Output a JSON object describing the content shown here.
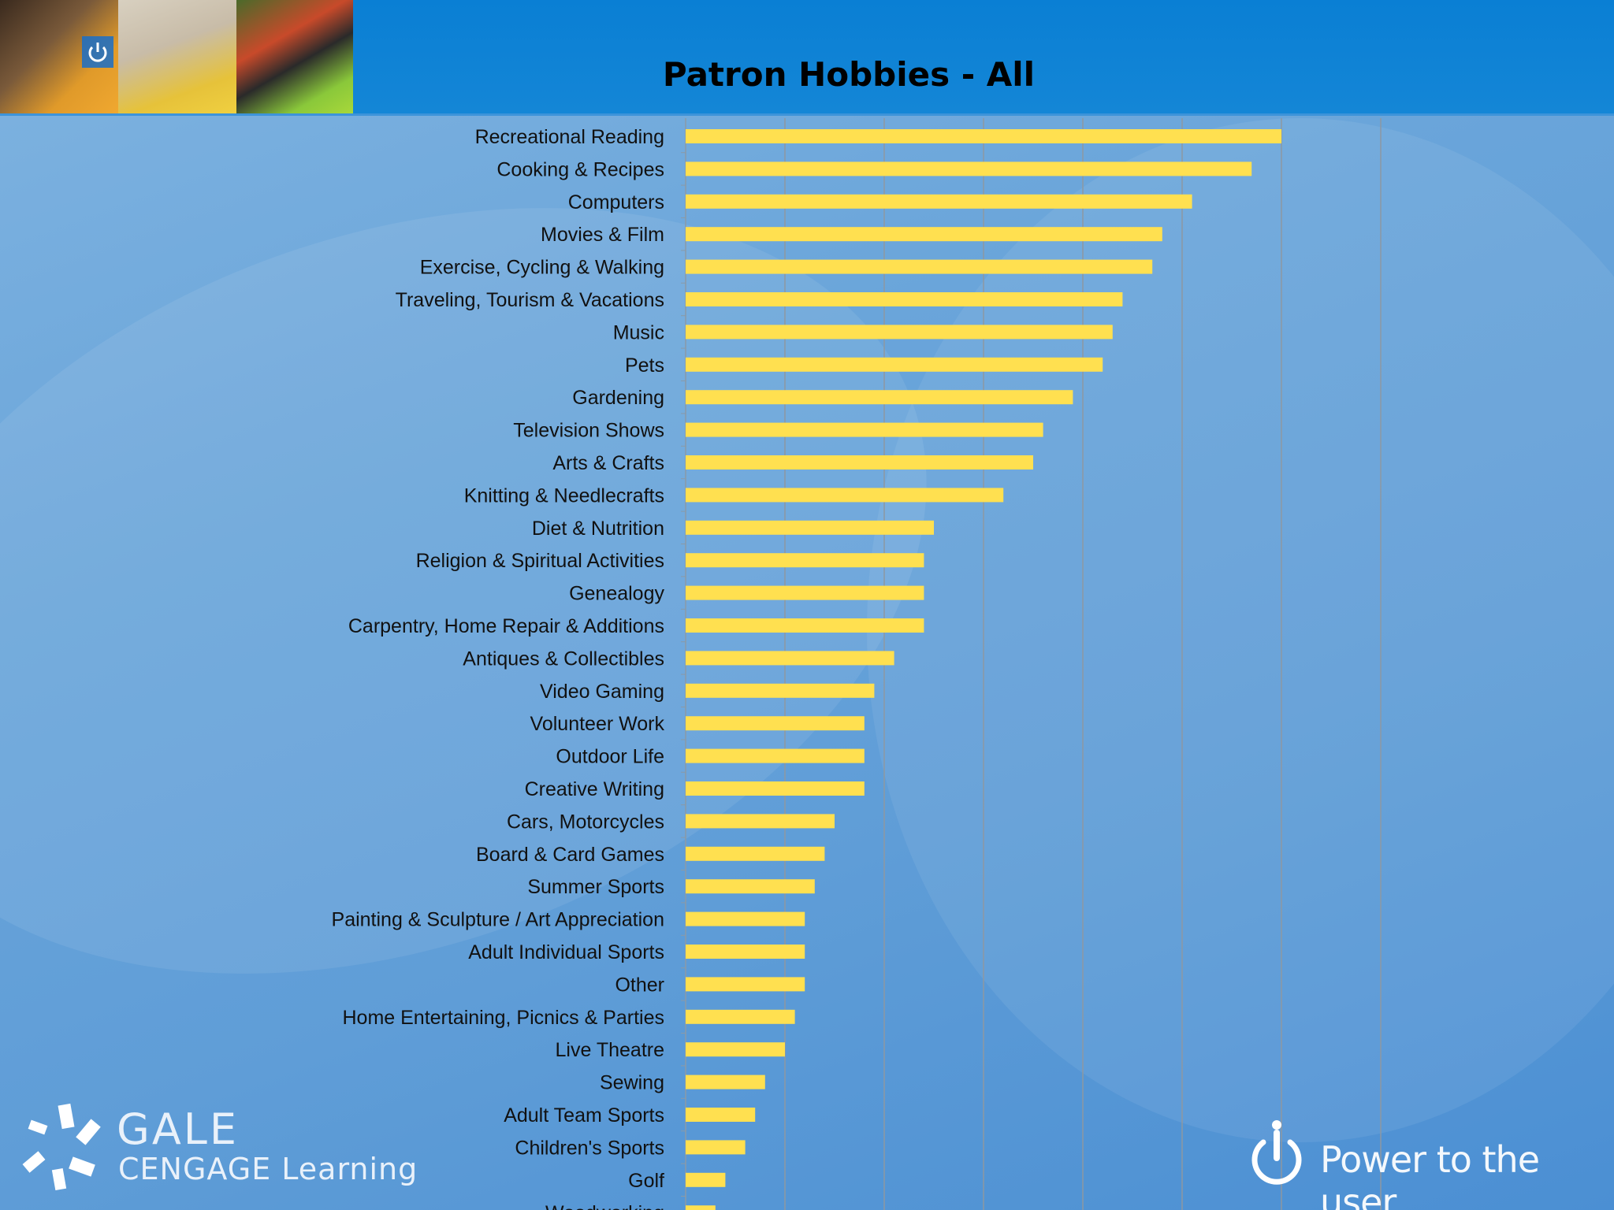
{
  "header": {
    "title": "Patron Hobbies - All"
  },
  "chart_data": {
    "type": "bar",
    "orientation": "horizontal",
    "title": "Patron Hobbies - All",
    "xlabel": "",
    "ylabel": "",
    "xlim": [
      0,
      7
    ],
    "grid": true,
    "bar_color": "#ffe050",
    "categories": [
      "Recreational Reading",
      "Cooking & Recipes",
      "Computers",
      "Movies & Film",
      "Exercise, Cycling & Walking",
      "Traveling, Tourism & Vacations",
      "Music",
      "Pets",
      "Gardening",
      "Television Shows",
      "Arts & Crafts",
      "Knitting & Needlecrafts",
      "Diet & Nutrition",
      "Religion & Spiritual Activities",
      "Genealogy",
      "Carpentry, Home Repair & Additions",
      "Antiques & Collectibles",
      "Video Gaming",
      "Volunteer Work",
      "Outdoor Life",
      "Creative Writing",
      "Cars, Motorcycles",
      "Board & Card Games",
      "Summer Sports",
      "Painting & Sculpture / Art Appreciation",
      "Adult Individual Sports",
      "Other",
      "Home Entertaining, Picnics & Parties",
      "Live Theatre",
      "Sewing",
      "Adult Team Sports",
      "Children's Sports",
      "Golf",
      "Woodworking"
    ],
    "values": [
      6.0,
      5.7,
      5.1,
      4.8,
      4.7,
      4.4,
      4.3,
      4.2,
      3.9,
      3.6,
      3.5,
      3.2,
      2.5,
      2.4,
      2.4,
      2.4,
      2.1,
      1.9,
      1.8,
      1.8,
      1.8,
      1.5,
      1.4,
      1.3,
      1.2,
      1.2,
      1.2,
      1.1,
      1.0,
      0.8,
      0.7,
      0.6,
      0.4,
      0.3
    ]
  },
  "footer": {
    "brand_line1": "GALE",
    "brand_line2": "CENGAGE Learning",
    "tagline": "Power to the user"
  }
}
